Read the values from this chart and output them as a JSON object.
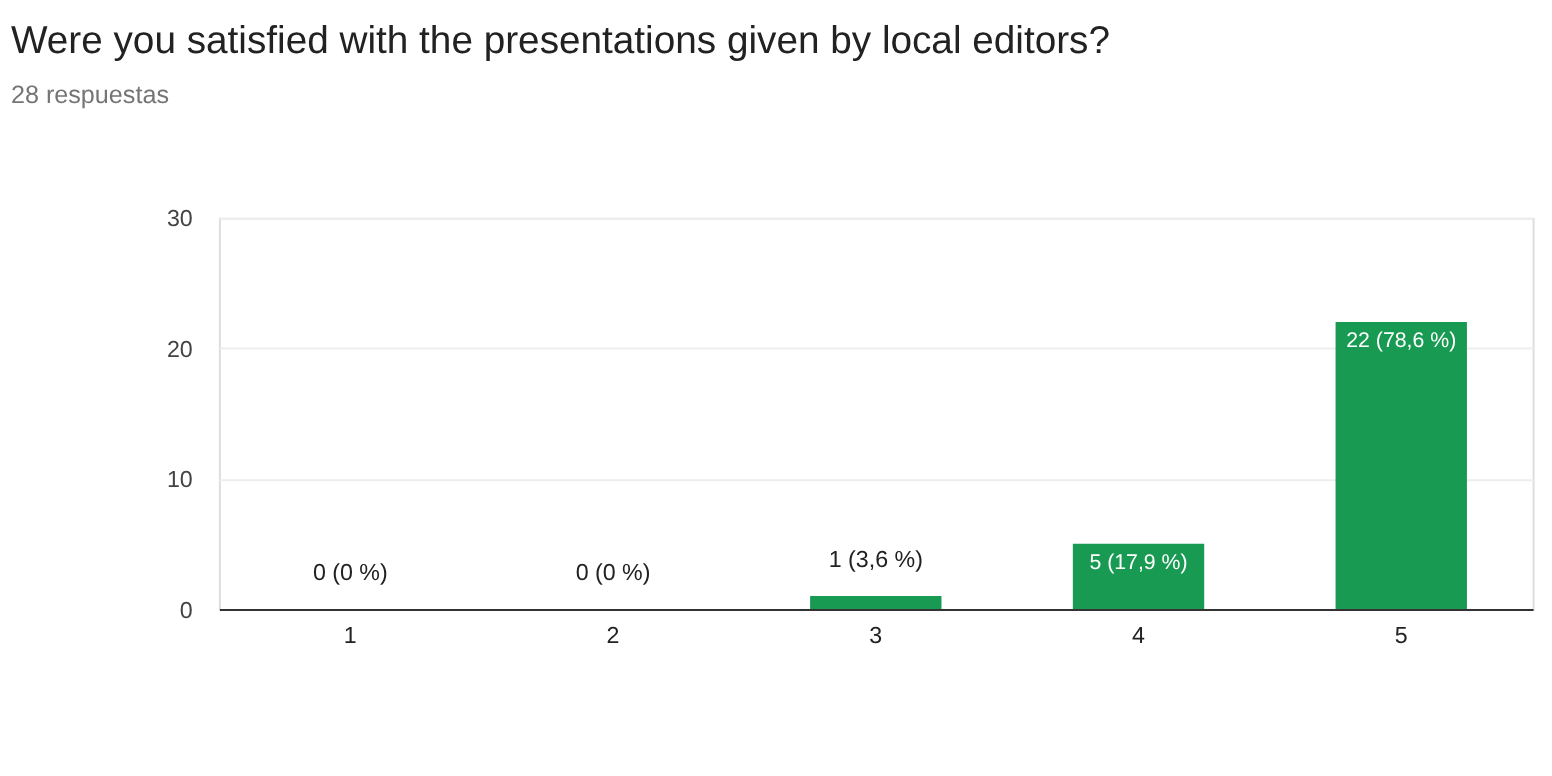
{
  "chart_data": {
    "type": "bar",
    "title": "Were you satisfied with the presentations given by local editors?",
    "subtitle": "28 respuestas",
    "categories": [
      "1",
      "2",
      "3",
      "4",
      "5"
    ],
    "values": [
      0,
      0,
      1,
      5,
      22
    ],
    "value_labels": [
      "0 (0 %)",
      "0 (0 %)",
      "1 (3,6 %)",
      "5 (17,9 %)",
      "22 (78,6 %)"
    ],
    "color": "#189a53",
    "ylim": [
      0,
      30
    ],
    "yticks": [
      0,
      10,
      20,
      30
    ],
    "grid": "y"
  }
}
